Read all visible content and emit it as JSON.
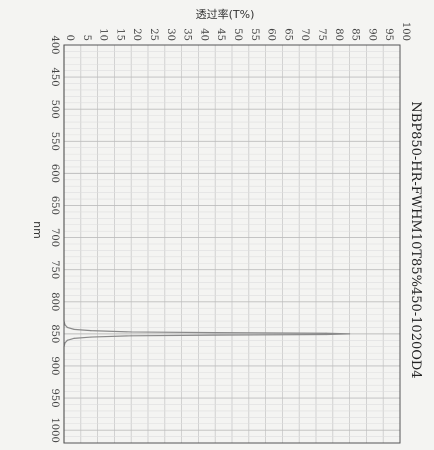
{
  "chart_data": {
    "type": "line",
    "title": "NBP850-HR-FWHM10T85%450-1020OD4",
    "xlabel": "nm",
    "ylabel": "透过率(T%)",
    "xlim": [
      400,
      1020
    ],
    "ylim": [
      0,
      100
    ],
    "x_ticks": [
      "400",
      "450",
      "500",
      "550",
      "600",
      "650",
      "700",
      "750",
      "800",
      "850",
      "900",
      "950",
      "1000"
    ],
    "y_ticks": [
      "0",
      "5",
      "10",
      "15",
      "20",
      "25",
      "30",
      "35",
      "40",
      "45",
      "50",
      "55",
      "60",
      "65",
      "70",
      "75",
      "80",
      "85",
      "90",
      "95",
      "100"
    ],
    "grid": true,
    "series": [
      {
        "x": [
          400,
          830,
          836,
          840,
          843,
          845,
          847,
          848,
          849,
          850,
          851,
          852,
          853,
          855,
          857,
          860,
          864,
          870,
          1020
        ],
        "y": [
          0,
          0,
          0.3,
          1,
          3,
          8,
          20,
          45,
          78,
          85,
          78,
          45,
          20,
          8,
          3,
          1,
          0.3,
          0,
          0
        ],
        "color": "#8a8a8a"
      }
    ]
  }
}
